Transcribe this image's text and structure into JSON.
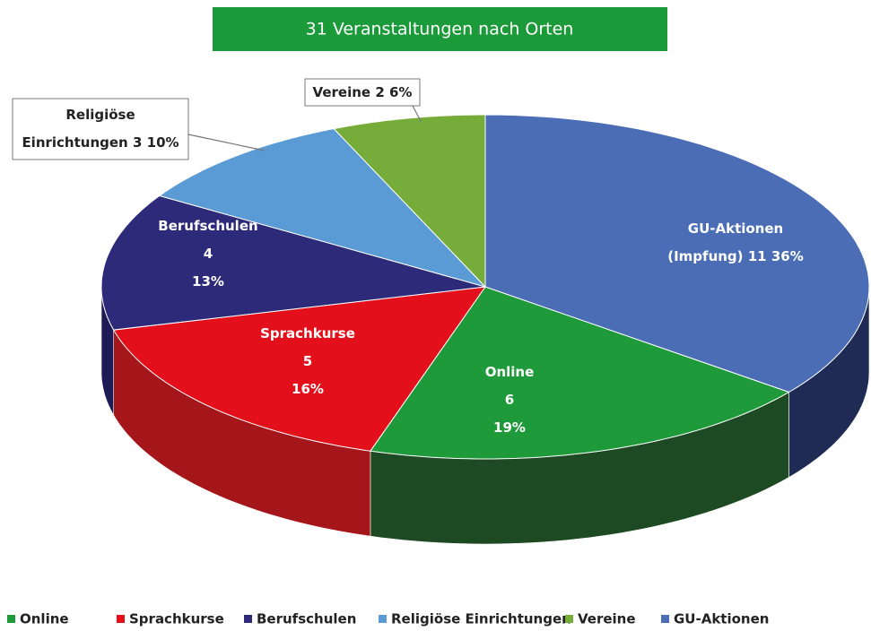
{
  "chart_data": {
    "type": "pie3d",
    "title": "31 Veranstaltungen nach Orten",
    "categories": [
      "Online",
      "Sprachkurse",
      "Berufschulen",
      "Religiöse Einrichtungen",
      "Vereine",
      "GU-Aktionen"
    ],
    "label_names": [
      [
        "Online"
      ],
      [
        "Sprachkurse"
      ],
      [
        "Berufschulen"
      ],
      [
        "Religiöse",
        "Einrichtungen"
      ],
      [
        "Vereine"
      ],
      [
        "GU-Aktionen",
        "(Impfung)"
      ]
    ],
    "values": [
      6,
      5,
      4,
      3,
      2,
      11
    ],
    "percents": [
      19,
      16,
      13,
      10,
      6,
      36
    ],
    "percent_labels": [
      "19%",
      "16%",
      "13%",
      "10%",
      "6%",
      "36%"
    ],
    "colors": [
      "#1f9a3b",
      "#e3101b",
      "#2e2a7a",
      "#5b9bd5",
      "#76ad3a",
      "#4a6db5"
    ],
    "side_colors": [
      "#1d4a22",
      "#a5161b",
      "#1d1a55",
      "#3f75a8",
      "#4f7b26",
      "#1f2b55"
    ],
    "legend": "bottom"
  }
}
